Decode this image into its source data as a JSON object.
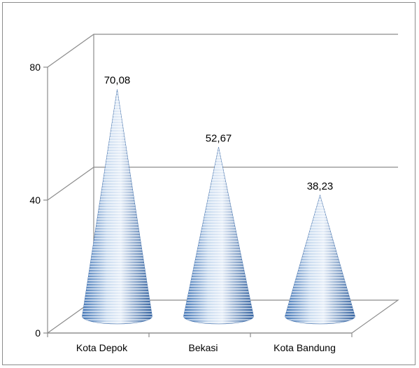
{
  "chart_data": {
    "type": "bar",
    "shape": "cone",
    "categories": [
      "Kota Depok",
      "Bekasi",
      "Kota Bandung"
    ],
    "values": [
      70.08,
      52.67,
      38.23
    ],
    "value_labels": [
      "70,08",
      "52,67",
      "38,23"
    ],
    "y_ticks": [
      "0",
      "40",
      "80"
    ],
    "y_tick_values": [
      0,
      40,
      80
    ],
    "ylim": [
      0,
      80
    ],
    "grid": true,
    "title": "",
    "xlabel": "",
    "ylabel": "",
    "colors": {
      "cone_light": "#dfe9f5",
      "cone_dark": "#4a7fc0",
      "grid": "#8c8c8c",
      "frame": "#8c8c8c"
    }
  }
}
